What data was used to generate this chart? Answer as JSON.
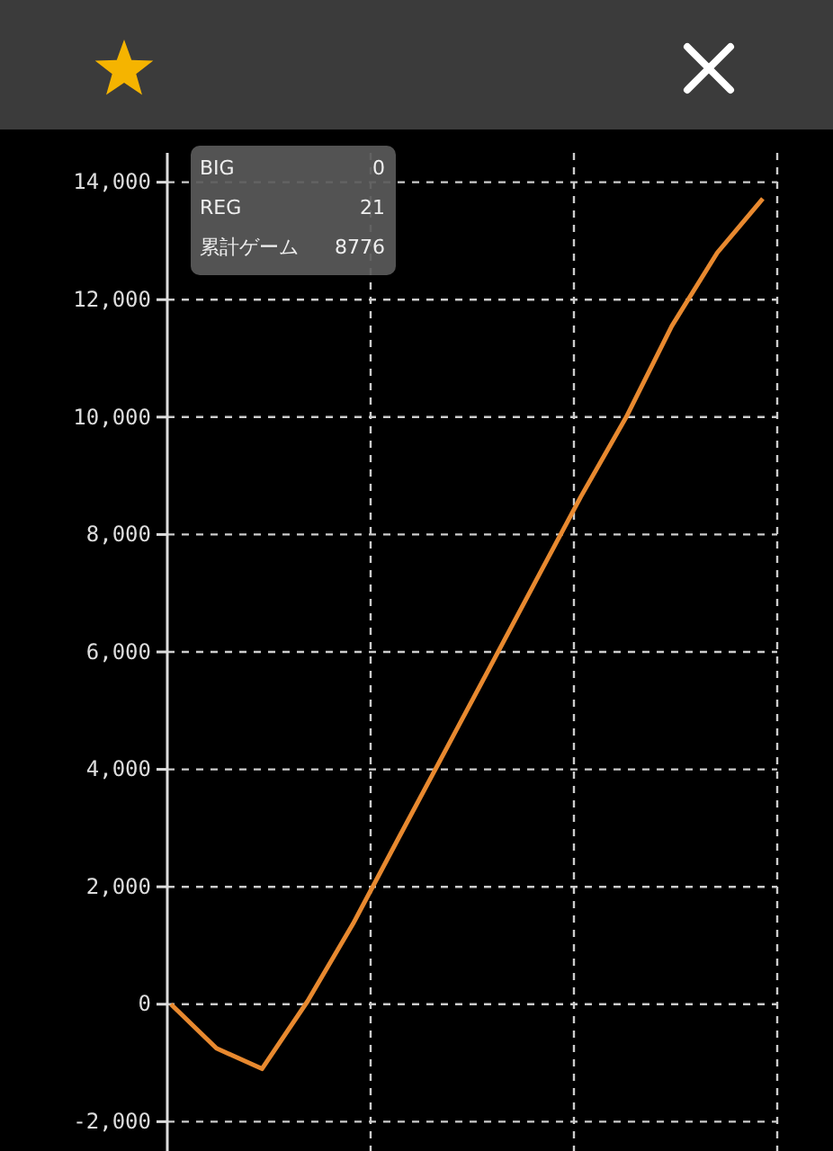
{
  "chart_data": {
    "type": "line",
    "categories": [
      null,
      null,
      null,
      null,
      null,
      null,
      null,
      null,
      null,
      null,
      null,
      null,
      null,
      null
    ],
    "series": [
      {
        "color": "#e8892f",
        "values": [
          0,
          -750,
          -1100,
          50,
          1370,
          2830,
          4280,
          5730,
          7190,
          8640,
          10000,
          11550,
          12800,
          13720
        ]
      }
    ],
    "ylim": [
      -2500,
      14500
    ],
    "yticks": [
      {
        "value": -2000,
        "label": "-2,000"
      },
      0,
      {
        "value": 2000,
        "label": "2,000"
      },
      {
        "value": 4000,
        "label": "4,000"
      },
      {
        "value": 6000,
        "label": "6,000"
      },
      {
        "value": 8000,
        "label": "8,000"
      },
      {
        "value": 10000,
        "label": "10,000"
      },
      {
        "value": 12000,
        "label": "12,000"
      },
      {
        "value": 14000,
        "label": "14,000"
      }
    ],
    "tick_labels": "y",
    "grid": true,
    "line_style": "solid",
    "marker": "none",
    "annotations": [
      "BIG",
      "0",
      "REG",
      "21",
      "累計ゲーム",
      "8776"
    ]
  }
}
